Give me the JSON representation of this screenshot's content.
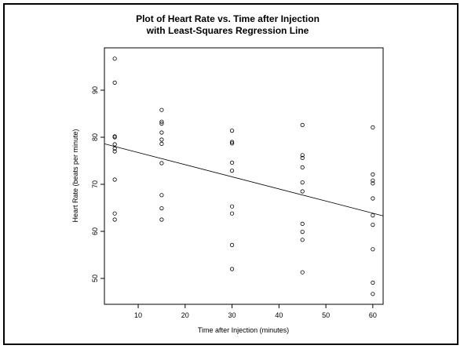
{
  "chart_data": {
    "type": "scatter",
    "title": [
      "Plot of Heart Rate vs. Time after Injection",
      "with Least-Squares Regression Line"
    ],
    "xlabel": "Time after Injection (minutes)",
    "ylabel": "Heart Rate (beats per minute)",
    "xlim": [
      2.8,
      62.2
    ],
    "ylim": [
      44.5,
      99.0
    ],
    "xticks": [
      10,
      20,
      30,
      40,
      50,
      60
    ],
    "yticks": [
      50,
      60,
      70,
      80,
      90
    ],
    "points": [
      [
        5,
        96.7
      ],
      [
        5,
        91.6
      ],
      [
        5,
        80.2
      ],
      [
        5,
        80.0
      ],
      [
        5,
        78.5
      ],
      [
        5,
        77.6
      ],
      [
        5,
        77.0
      ],
      [
        5,
        71.0
      ],
      [
        5,
        63.8
      ],
      [
        5,
        62.5
      ],
      [
        15,
        85.8
      ],
      [
        15,
        83.3
      ],
      [
        15,
        82.9
      ],
      [
        15,
        81.0
      ],
      [
        15,
        79.5
      ],
      [
        15,
        78.6
      ],
      [
        15,
        74.5
      ],
      [
        15,
        67.7
      ],
      [
        15,
        64.9
      ],
      [
        15,
        62.5
      ],
      [
        30,
        81.4
      ],
      [
        30,
        79.0
      ],
      [
        30,
        78.7
      ],
      [
        30,
        74.6
      ],
      [
        30,
        72.9
      ],
      [
        30,
        65.3
      ],
      [
        30,
        63.8
      ],
      [
        30,
        57.1
      ],
      [
        30,
        52.0
      ],
      [
        45,
        82.6
      ],
      [
        45,
        76.2
      ],
      [
        45,
        75.6
      ],
      [
        45,
        73.6
      ],
      [
        45,
        70.4
      ],
      [
        45,
        68.5
      ],
      [
        45,
        61.6
      ],
      [
        45,
        59.9
      ],
      [
        45,
        58.2
      ],
      [
        45,
        51.3
      ],
      [
        60,
        82.1
      ],
      [
        60,
        72.1
      ],
      [
        60,
        70.8
      ],
      [
        60,
        70.2
      ],
      [
        60,
        67.0
      ],
      [
        60,
        63.4
      ],
      [
        60,
        61.4
      ],
      [
        60,
        56.2
      ],
      [
        60,
        49.1
      ],
      [
        60,
        46.7
      ]
    ],
    "regression_line": {
      "x": [
        2.8,
        62.2
      ],
      "y": [
        78.6,
        63.3
      ]
    },
    "grid": false,
    "legend": false,
    "colors": {
      "points": "#000000",
      "line": "#000000",
      "frame": "#000000"
    }
  }
}
